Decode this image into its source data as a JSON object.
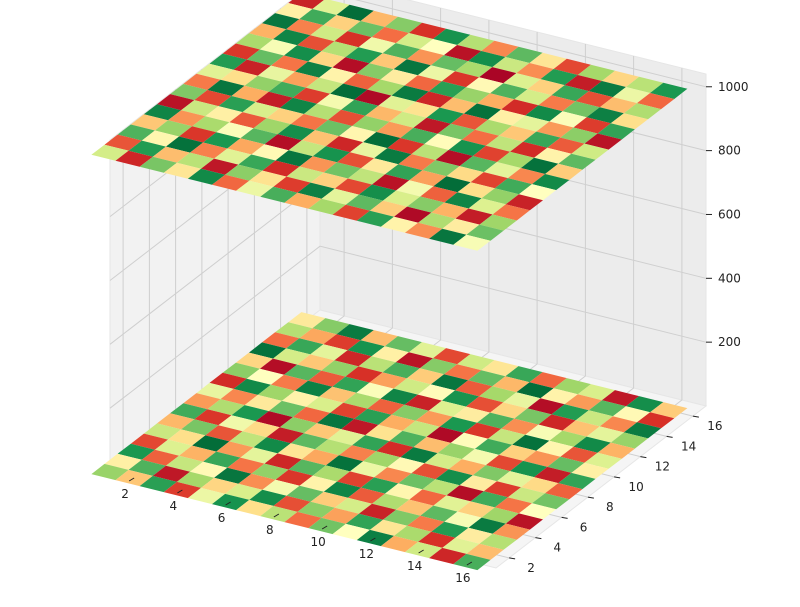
{
  "chart_data": {
    "type": "surface3d-heatmap",
    "title": "",
    "xlabel": "",
    "ylabel": "",
    "zlabel": "",
    "colormap": "RdYlGn",
    "colormap_stops": [
      "#a50026",
      "#d73027",
      "#f46d43",
      "#fdae61",
      "#fee08b",
      "#ffffbf",
      "#d9ef8b",
      "#a6d96a",
      "#66bd63",
      "#1a9850",
      "#006837"
    ],
    "grid_size": 16,
    "xlim": [
      1,
      17
    ],
    "ylim": [
      1,
      17
    ],
    "zlim": [
      0,
      1040
    ],
    "x_ticks": [
      "2",
      "4",
      "6",
      "8",
      "10",
      "12",
      "14",
      "16"
    ],
    "y_ticks": [
      "2",
      "4",
      "6",
      "8",
      "10",
      "12",
      "14",
      "16"
    ],
    "z_ticks": [
      "200",
      "400",
      "600",
      "800",
      "1000"
    ],
    "layers": [
      {
        "z": 0,
        "values": [
          [
            0.72,
            0.35,
            0.88,
            0.12,
            0.55,
            0.91,
            0.4,
            0.66,
            0.2,
            0.78,
            0.5,
            0.95,
            0.3,
            0.62,
            0.08,
            0.84
          ],
          [
            0.45,
            0.83,
            0.05,
            0.7,
            0.38,
            0.6,
            0.92,
            0.15,
            0.74,
            0.28,
            0.87,
            0.42,
            0.69,
            0.1,
            0.58,
            0.33
          ],
          [
            0.9,
            0.18,
            0.64,
            0.48,
            0.97,
            0.25,
            0.53,
            0.8,
            0.36,
            0.61,
            0.07,
            0.76,
            0.22,
            0.89,
            0.44,
            0.67
          ],
          [
            0.14,
            0.59,
            0.31,
            0.86,
            0.21,
            0.73,
            0.11,
            0.46,
            0.94,
            0.17,
            0.68,
            0.34,
            0.81,
            0.52,
            0.96,
            0.26
          ],
          [
            0.63,
            0.4,
            0.99,
            0.27,
            0.57,
            0.08,
            0.82,
            0.69,
            0.13,
            0.88,
            0.47,
            0.19,
            0.58,
            0.37,
            0.71,
            0.04
          ],
          [
            0.32,
            0.77,
            0.16,
            0.65,
            0.93,
            0.42,
            0.29,
            0.98,
            0.55,
            0.24,
            0.79,
            0.66,
            0.03,
            0.85,
            0.21,
            0.5
          ],
          [
            0.85,
            0.11,
            0.54,
            0.39,
            0.06,
            0.81,
            0.67,
            0.23,
            0.71,
            0.48,
            0.15,
            0.92,
            0.44,
            0.12,
            0.63,
            0.78
          ],
          [
            0.27,
            0.68,
            0.9,
            0.02,
            0.74,
            0.35,
            0.58,
            0.87,
            0.09,
            0.96,
            0.61,
            0.3,
            0.76,
            0.57,
            0.39,
            0.18
          ],
          [
            0.56,
            0.24,
            0.43,
            0.79,
            0.19,
            0.97,
            0.05,
            0.41,
            0.83,
            0.33,
            0.72,
            0.53,
            0.14,
            0.91,
            0.06,
            0.87
          ],
          [
            0.09,
            0.93,
            0.71,
            0.46,
            0.6,
            0.13,
            0.88,
            0.3,
            0.64,
            0.02,
            0.49,
            0.85,
            0.37,
            0.26,
            0.8,
            0.45
          ],
          [
            0.74,
            0.5,
            0.22,
            0.95,
            0.34,
            0.69,
            0.18,
            0.75,
            0.27,
            0.9,
            0.11,
            0.64,
            0.98,
            0.47,
            0.16,
            0.59
          ],
          [
            0.38,
            0.03,
            0.82,
            0.17,
            0.87,
            0.51,
            0.94,
            0.07,
            0.59,
            0.44,
            0.83,
            0.25,
            0.52,
            0.7,
            0.93,
            0.31
          ],
          [
            0.98,
            0.61,
            0.35,
            0.73,
            0.1,
            0.28,
            0.62,
            0.49,
            0.91,
            0.15,
            0.38,
            0.77,
            0.08,
            0.34,
            0.57,
            0.72
          ],
          [
            0.2,
            0.86,
            0.57,
            0.08,
            0.66,
            0.84,
            0.36,
            0.97,
            0.17,
            0.7,
            0.56,
            0.03,
            0.89,
            0.63,
            0.24,
            0.96
          ],
          [
            0.67,
            0.29,
            0.12,
            0.91,
            0.45,
            0.04,
            0.75,
            0.21,
            0.8,
            0.32,
            0.99,
            0.46,
            0.27,
            0.82,
            0.48,
            0.1
          ],
          [
            0.43,
            0.75,
            0.96,
            0.33,
            0.8,
            0.58,
            0.14,
            0.62,
            0.42,
            0.86,
            0.19,
            0.71,
            0.6,
            0.05,
            0.92,
            0.36
          ]
        ]
      },
      {
        "z": 1000,
        "values": [
          [
            0.61,
            0.08,
            0.77,
            0.42,
            0.93,
            0.19,
            0.55,
            0.84,
            0.3,
            0.7,
            0.13,
            0.88,
            0.46,
            0.25,
            0.97,
            0.52
          ],
          [
            0.16,
            0.89,
            0.33,
            0.66,
            0.05,
            0.74,
            0.41,
            0.12,
            0.95,
            0.57,
            0.81,
            0.36,
            0.02,
            0.68,
            0.44,
            0.79
          ],
          [
            0.83,
            0.47,
            0.98,
            0.23,
            0.58,
            0.86,
            0.09,
            0.63,
            0.37,
            0.14,
            0.92,
            0.6,
            0.75,
            0.31,
            0.06,
            0.71
          ],
          [
            0.35,
            0.72,
            0.11,
            0.9,
            0.29,
            0.48,
            0.97,
            0.26,
            0.78,
            0.65,
            0.04,
            0.53,
            0.18,
            0.94,
            0.59,
            0.21
          ],
          [
            0.94,
            0.26,
            0.69,
            0.51,
            0.82,
            0.03,
            0.64,
            0.91,
            0.15,
            0.43,
            0.87,
            0.28,
            0.99,
            0.4,
            0.73,
            0.07
          ],
          [
            0.04,
            0.63,
            0.45,
            0.17,
            0.71,
            0.92,
            0.34,
            0.08,
            0.56,
            0.96,
            0.22,
            0.76,
            0.39,
            0.13,
            0.85,
            0.5
          ],
          [
            0.76,
            0.14,
            0.88,
            0.6,
            0.37,
            0.21,
            0.79,
            0.47,
            0.99,
            0.11,
            0.66,
            0.03,
            0.82,
            0.57,
            0.24,
            0.93
          ],
          [
            0.22,
            0.97,
            0.3,
            0.06,
            0.94,
            0.67,
            0.15,
            0.73,
            0.27,
            0.84,
            0.49,
            0.91,
            0.13,
            0.7,
            0.98,
            0.36
          ],
          [
            0.58,
            0.4,
            0.73,
            0.85,
            0.12,
            0.53,
            0.87,
            0.32,
            0.62,
            0.05,
            0.77,
            0.2,
            0.65,
            0.09,
            0.46,
            0.81
          ],
          [
            0.89,
            0.07,
            0.56,
            0.28,
            0.64,
            0.99,
            0.02,
            0.58,
            0.41,
            0.9,
            0.16,
            0.69,
            0.35,
            0.86,
            0.17,
            0.62
          ],
          [
            0.11,
            0.8,
            0.21,
            0.95,
            0.46,
            0.18,
            0.7,
            0.96,
            0.08,
            0.33,
            0.98,
            0.45,
            0.57,
            0.27,
            0.74,
            0.04
          ],
          [
            0.69,
            0.52,
            0.92,
            0.38,
            0.03,
            0.75,
            0.44,
            0.19,
            0.88,
            0.72,
            0.3,
            0.09,
            0.93,
            0.51,
            0.12,
            0.87
          ],
          [
            0.31,
            0.94,
            0.15,
            0.67,
            0.89,
            0.35,
            0.97,
            0.55,
            0.11,
            0.48,
            0.83,
            0.61,
            0.22,
            0.78,
            0.95,
            0.4
          ],
          [
            0.97,
            0.23,
            0.62,
            0.1,
            0.54,
            0.83,
            0.26,
            0.8,
            0.69,
            0.01,
            0.59,
            0.37,
            0.86,
            0.15,
            0.33,
            0.68
          ],
          [
            0.45,
            0.85,
            0.37,
            0.79,
            0.2,
            0.61,
            0.5,
            0.04,
            0.92,
            0.63,
            0.25,
            0.89,
            0.06,
            0.96,
            0.55,
            0.19
          ],
          [
            0.07,
            0.58,
            0.99,
            0.32,
            0.75,
            0.1,
            0.91,
            0.67,
            0.24,
            0.81,
            0.42,
            0.14,
            0.7,
            0.38,
            0.66,
            0.9
          ]
        ]
      }
    ]
  }
}
